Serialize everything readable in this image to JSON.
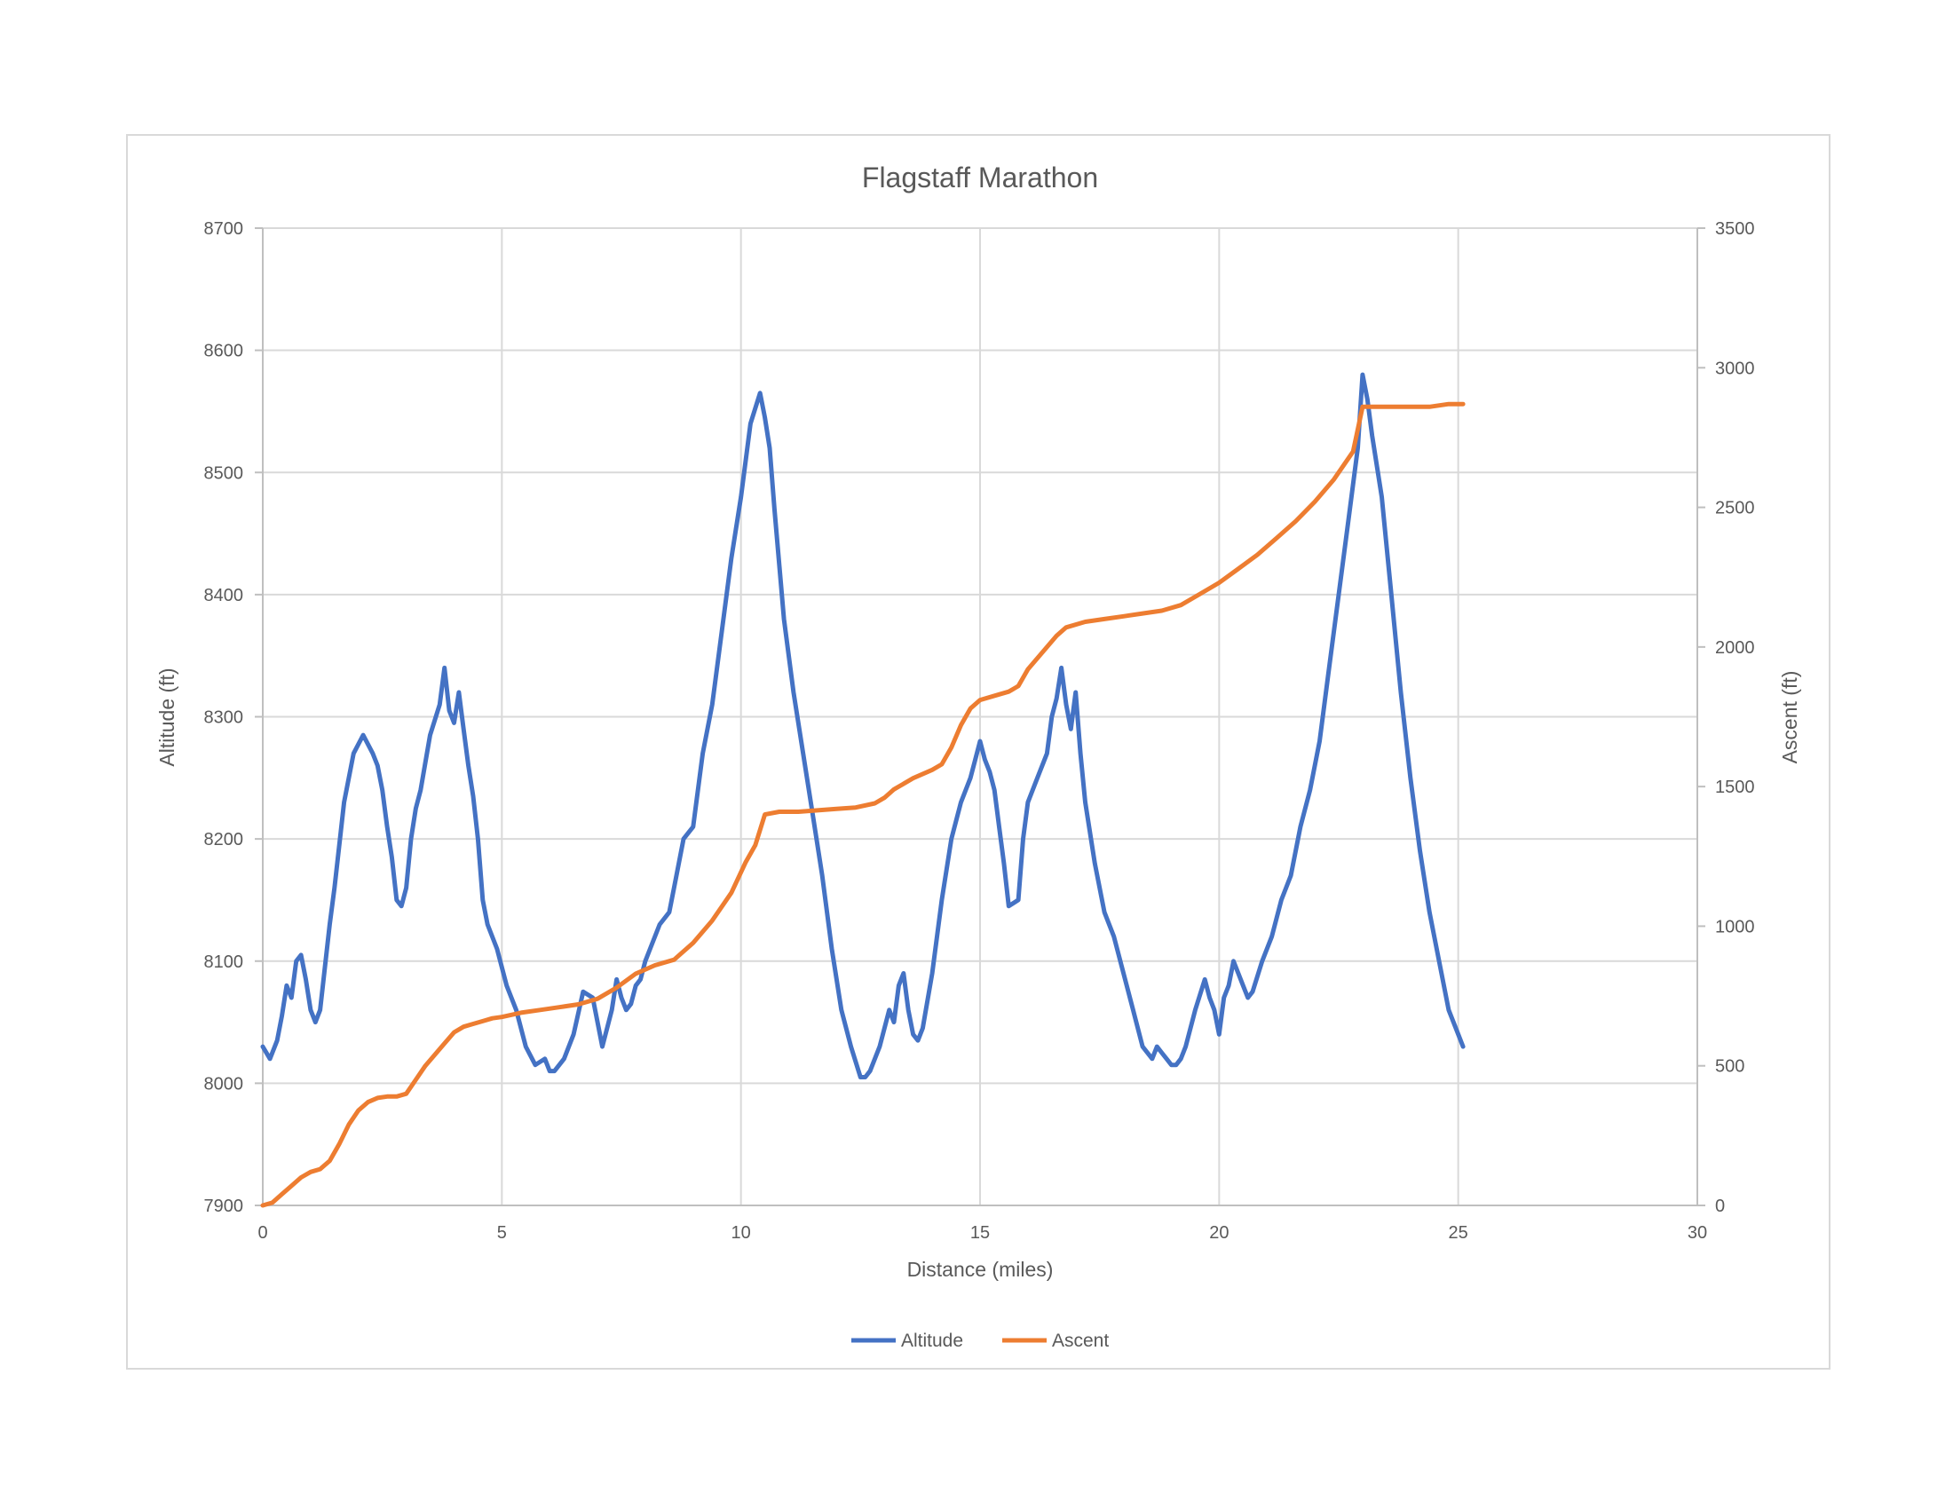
{
  "chart_data": {
    "type": "line",
    "title": "Flagstaff Marathon",
    "xlabel": "Distance (miles)",
    "ylabel": "Altitude (ft)",
    "y2label": "Ascent (ft)",
    "xlim": [
      0,
      30
    ],
    "ylim": [
      7900,
      8700
    ],
    "y2lim": [
      0,
      3500
    ],
    "xticks": [
      "0",
      "5",
      "10",
      "15",
      "20",
      "25",
      "30"
    ],
    "yticks": [
      "7900",
      "8000",
      "8100",
      "8200",
      "8300",
      "8400",
      "8500",
      "8600",
      "8700"
    ],
    "y2ticks": [
      "0",
      "500",
      "1000",
      "1500",
      "2000",
      "2500",
      "3000",
      "3500"
    ],
    "grid": true,
    "legend_position": "bottom",
    "series": [
      {
        "name": "Altitude",
        "axis": "left",
        "color": "#4472c4",
        "x": [
          0,
          0.15,
          0.3,
          0.4,
          0.5,
          0.6,
          0.7,
          0.8,
          0.9,
          1.0,
          1.1,
          1.2,
          1.3,
          1.4,
          1.5,
          1.7,
          1.9,
          2.1,
          2.3,
          2.4,
          2.5,
          2.6,
          2.7,
          2.8,
          2.9,
          3.0,
          3.1,
          3.2,
          3.3,
          3.5,
          3.7,
          3.8,
          3.9,
          4.0,
          4.1,
          4.2,
          4.3,
          4.4,
          4.5,
          4.6,
          4.7,
          4.9,
          5.1,
          5.3,
          5.5,
          5.7,
          5.9,
          6.0,
          6.1,
          6.3,
          6.5,
          6.7,
          6.9,
          7.1,
          7.3,
          7.4,
          7.5,
          7.6,
          7.7,
          7.8,
          7.9,
          8.0,
          8.1,
          8.3,
          8.5,
          8.6,
          8.8,
          9.0,
          9.2,
          9.4,
          9.6,
          9.8,
          10.0,
          10.2,
          10.4,
          10.5,
          10.6,
          10.7,
          10.9,
          11.1,
          11.3,
          11.5,
          11.7,
          11.9,
          12.1,
          12.3,
          12.5,
          12.6,
          12.7,
          12.9,
          13.1,
          13.2,
          13.3,
          13.4,
          13.5,
          13.6,
          13.7,
          13.8,
          14.0,
          14.2,
          14.4,
          14.6,
          14.8,
          14.9,
          15.0,
          15.1,
          15.2,
          15.3,
          15.4,
          15.5,
          15.6,
          15.8,
          15.9,
          16.0,
          16.2,
          16.4,
          16.5,
          16.6,
          16.7,
          16.8,
          16.9,
          17.0,
          17.1,
          17.2,
          17.4,
          17.6,
          17.8,
          18.0,
          18.2,
          18.4,
          18.6,
          18.7,
          18.8,
          18.9,
          19.0,
          19.1,
          19.2,
          19.3,
          19.5,
          19.7,
          19.8,
          19.9,
          20.0,
          20.1,
          20.2,
          20.3,
          20.4,
          20.5,
          20.6,
          20.7,
          20.9,
          21.1,
          21.3,
          21.5,
          21.7,
          21.9,
          22.1,
          22.3,
          22.5,
          22.7,
          22.9,
          23.0,
          23.1,
          23.2,
          23.4,
          23.6,
          23.8,
          24.0,
          24.2,
          24.4,
          24.6,
          24.8,
          25.0,
          25.1
        ],
        "values": [
          8030,
          8020,
          8035,
          8055,
          8080,
          8070,
          8100,
          8105,
          8085,
          8060,
          8050,
          8060,
          8095,
          8130,
          8160,
          8230,
          8270,
          8285,
          8270,
          8260,
          8240,
          8210,
          8185,
          8150,
          8145,
          8160,
          8200,
          8225,
          8240,
          8285,
          8310,
          8340,
          8305,
          8295,
          8320,
          8290,
          8260,
          8235,
          8200,
          8150,
          8130,
          8110,
          8080,
          8060,
          8030,
          8015,
          8020,
          8010,
          8010,
          8020,
          8040,
          8075,
          8070,
          8030,
          8060,
          8085,
          8070,
          8060,
          8065,
          8080,
          8085,
          8100,
          8110,
          8130,
          8140,
          8160,
          8200,
          8210,
          8270,
          8310,
          8370,
          8430,
          8480,
          8540,
          8565,
          8545,
          8520,
          8470,
          8380,
          8320,
          8270,
          8220,
          8170,
          8110,
          8060,
          8030,
          8005,
          8005,
          8010,
          8030,
          8060,
          8050,
          8080,
          8090,
          8060,
          8040,
          8035,
          8045,
          8090,
          8150,
          8200,
          8230,
          8250,
          8265,
          8280,
          8265,
          8255,
          8240,
          8210,
          8180,
          8145,
          8150,
          8200,
          8230,
          8250,
          8270,
          8300,
          8315,
          8340,
          8310,
          8290,
          8320,
          8270,
          8230,
          8180,
          8140,
          8120,
          8090,
          8060,
          8030,
          8020,
          8030,
          8025,
          8020,
          8015,
          8015,
          8020,
          8030,
          8060,
          8085,
          8070,
          8060,
          8040,
          8070,
          8080,
          8100,
          8090,
          8080,
          8070,
          8075,
          8100,
          8120,
          8150,
          8170,
          8210,
          8240,
          8280,
          8340,
          8400,
          8460,
          8520,
          8580,
          8560,
          8530,
          8480,
          8400,
          8320,
          8250,
          8190,
          8140,
          8100,
          8060,
          8040,
          8030
        ]
      },
      {
        "name": "Ascent",
        "axis": "right",
        "color": "#ed7d31",
        "x": [
          0,
          0.2,
          0.4,
          0.6,
          0.8,
          1.0,
          1.2,
          1.4,
          1.6,
          1.8,
          2.0,
          2.2,
          2.4,
          2.6,
          2.8,
          3.0,
          3.2,
          3.4,
          3.6,
          3.8,
          4.0,
          4.2,
          4.4,
          4.6,
          4.8,
          5.0,
          5.4,
          5.8,
          6.2,
          6.6,
          7.0,
          7.4,
          7.8,
          8.2,
          8.6,
          9.0,
          9.4,
          9.8,
          10.1,
          10.3,
          10.5,
          10.8,
          11.2,
          11.6,
          12.0,
          12.4,
          12.8,
          13.0,
          13.2,
          13.6,
          14.0,
          14.2,
          14.4,
          14.6,
          14.8,
          15.0,
          15.4,
          15.6,
          15.8,
          16.0,
          16.4,
          16.6,
          16.8,
          17.2,
          17.6,
          18.0,
          18.4,
          18.8,
          19.2,
          19.6,
          20.0,
          20.4,
          20.8,
          21.2,
          21.6,
          22.0,
          22.4,
          22.8,
          23.0,
          23.2,
          23.6,
          24.0,
          24.4,
          24.8,
          25.1
        ],
        "values": [
          0,
          10,
          40,
          70,
          100,
          120,
          130,
          160,
          220,
          290,
          340,
          370,
          385,
          390,
          390,
          400,
          450,
          500,
          540,
          580,
          620,
          640,
          650,
          660,
          670,
          675,
          690,
          700,
          710,
          720,
          740,
          780,
          830,
          860,
          880,
          940,
          1020,
          1120,
          1230,
          1290,
          1400,
          1410,
          1410,
          1415,
          1420,
          1425,
          1440,
          1460,
          1490,
          1530,
          1560,
          1580,
          1640,
          1720,
          1780,
          1810,
          1830,
          1840,
          1860,
          1920,
          2000,
          2040,
          2070,
          2090,
          2100,
          2110,
          2120,
          2130,
          2150,
          2190,
          2230,
          2280,
          2330,
          2390,
          2450,
          2520,
          2600,
          2700,
          2860,
          2860,
          2860,
          2860,
          2860,
          2870,
          2870
        ]
      }
    ]
  }
}
